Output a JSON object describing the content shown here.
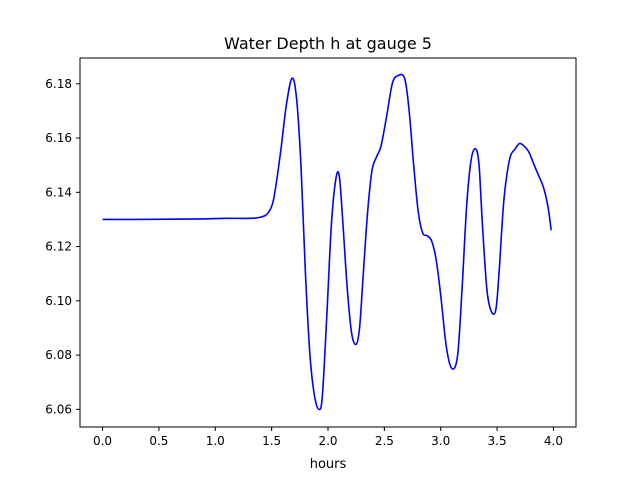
{
  "chart_data": {
    "type": "line",
    "title": "Water Depth h at gauge 5",
    "xlabel": "hours",
    "ylabel": "",
    "xlim": [
      -0.2,
      4.2
    ],
    "ylim": [
      6.0535,
      6.1895
    ],
    "grid": false,
    "legend": "none",
    "xticks": [
      0.0,
      0.5,
      1.0,
      1.5,
      2.0,
      2.5,
      3.0,
      3.5,
      4.0
    ],
    "xtick_labels": [
      "0.0",
      "0.5",
      "1.0",
      "1.5",
      "2.0",
      "2.5",
      "3.0",
      "3.5",
      "4.0"
    ],
    "yticks": [
      6.06,
      6.08,
      6.1,
      6.12,
      6.14,
      6.16,
      6.18
    ],
    "ytick_labels": [
      "6.06",
      "6.08",
      "6.10",
      "6.12",
      "6.14",
      "6.16",
      "6.18"
    ],
    "series": [
      {
        "color": "#0000ff",
        "x": [
          0.0,
          0.3,
          0.6,
          0.9,
          1.1,
          1.3,
          1.4,
          1.47,
          1.52,
          1.58,
          1.63,
          1.68,
          1.72,
          1.76,
          1.8,
          1.84,
          1.88,
          1.92,
          1.95,
          1.99,
          2.03,
          2.07,
          2.1,
          2.13,
          2.17,
          2.21,
          2.25,
          2.28,
          2.31,
          2.35,
          2.39,
          2.43,
          2.47,
          2.52,
          2.57,
          2.62,
          2.68,
          2.72,
          2.76,
          2.8,
          2.84,
          2.88,
          2.92,
          2.96,
          3.0,
          3.05,
          3.1,
          3.15,
          3.19,
          3.23,
          3.27,
          3.31,
          3.34,
          3.37,
          3.41,
          3.45,
          3.49,
          3.52,
          3.56,
          3.61,
          3.66,
          3.7,
          3.74,
          3.78,
          3.82,
          3.86,
          3.91,
          3.95,
          3.98
        ],
        "y": [
          6.13,
          6.13,
          6.1301,
          6.1302,
          6.1304,
          6.1304,
          6.1308,
          6.1325,
          6.138,
          6.155,
          6.172,
          6.182,
          6.175,
          6.15,
          6.11,
          6.08,
          6.065,
          6.06,
          6.065,
          6.095,
          6.128,
          6.145,
          6.146,
          6.13,
          6.105,
          6.088,
          6.084,
          6.09,
          6.108,
          6.132,
          6.148,
          6.153,
          6.157,
          6.168,
          6.18,
          6.183,
          6.182,
          6.17,
          6.15,
          6.133,
          6.125,
          6.124,
          6.122,
          6.115,
          6.102,
          6.083,
          6.075,
          6.08,
          6.105,
          6.135,
          6.152,
          6.156,
          6.15,
          6.128,
          6.104,
          6.096,
          6.097,
          6.112,
          6.137,
          6.152,
          6.156,
          6.158,
          6.157,
          6.155,
          6.151,
          6.147,
          6.142,
          6.135,
          6.126
        ]
      }
    ]
  }
}
